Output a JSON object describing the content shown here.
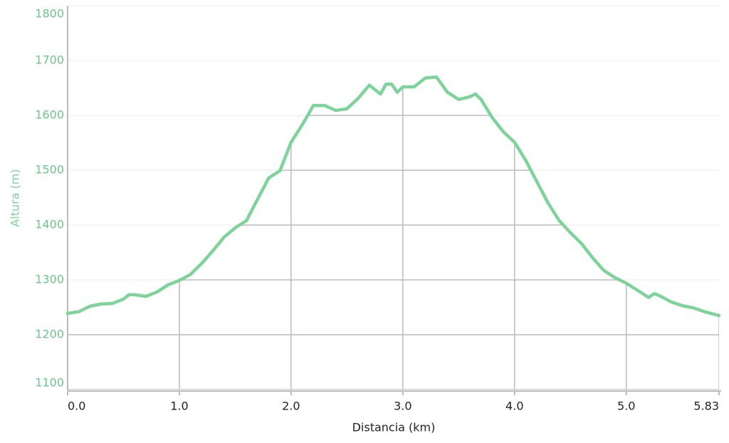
{
  "chart_data": {
    "type": "line",
    "xlabel": "Distancia (km)",
    "ylabel": "Altura (m)",
    "x": [
      0,
      0.1,
      0.2,
      0.3,
      0.4,
      0.5,
      0.55,
      0.6,
      0.7,
      0.8,
      0.9,
      1.0,
      1.1,
      1.2,
      1.3,
      1.4,
      1.5,
      1.6,
      1.7,
      1.8,
      1.9,
      2.0,
      2.1,
      2.2,
      2.3,
      2.4,
      2.5,
      2.6,
      2.7,
      2.8,
      2.85,
      2.9,
      2.95,
      3.0,
      3.1,
      3.2,
      3.3,
      3.4,
      3.5,
      3.6,
      3.65,
      3.7,
      3.8,
      3.9,
      4.0,
      4.1,
      4.2,
      4.3,
      4.4,
      4.5,
      4.6,
      4.7,
      4.8,
      4.9,
      5.0,
      5.1,
      5.2,
      5.25,
      5.3,
      5.4,
      5.5,
      5.6,
      5.7,
      5.83
    ],
    "series": [
      {
        "name": "Altura",
        "color": "#7dd39a",
        "values": [
          1239,
          1242,
          1252,
          1256,
          1257,
          1265,
          1273,
          1273,
          1270,
          1278,
          1291,
          1299,
          1310,
          1330,
          1353,
          1378,
          1395,
          1408,
          1447,
          1486,
          1499,
          1551,
          1583,
          1618,
          1618,
          1609,
          1612,
          1631,
          1655,
          1639,
          1657,
          1657,
          1642,
          1652,
          1652,
          1668,
          1670,
          1642,
          1629,
          1634,
          1639,
          1629,
          1596,
          1570,
          1551,
          1518,
          1479,
          1440,
          1408,
          1386,
          1366,
          1340,
          1317,
          1304,
          1294,
          1281,
          1268,
          1275,
          1271,
          1260,
          1253,
          1249,
          1242,
          1235
        ]
      }
    ],
    "xlim": [
      0,
      5.83
    ],
    "xticks": [
      {
        "value": 0,
        "label": "0.0"
      },
      {
        "value": 1,
        "label": "1.0"
      },
      {
        "value": 2,
        "label": "2.0"
      },
      {
        "value": 3,
        "label": "3.0"
      },
      {
        "value": 4,
        "label": "4.0"
      },
      {
        "value": 5,
        "label": "5.0"
      },
      5.83
    ],
    "ylim": [
      1100,
      1800
    ],
    "yticks": [
      1100,
      1200,
      1300,
      1400,
      1500,
      1600,
      1700,
      1800
    ],
    "grid": true,
    "tick_color": "#6cc58a"
  }
}
